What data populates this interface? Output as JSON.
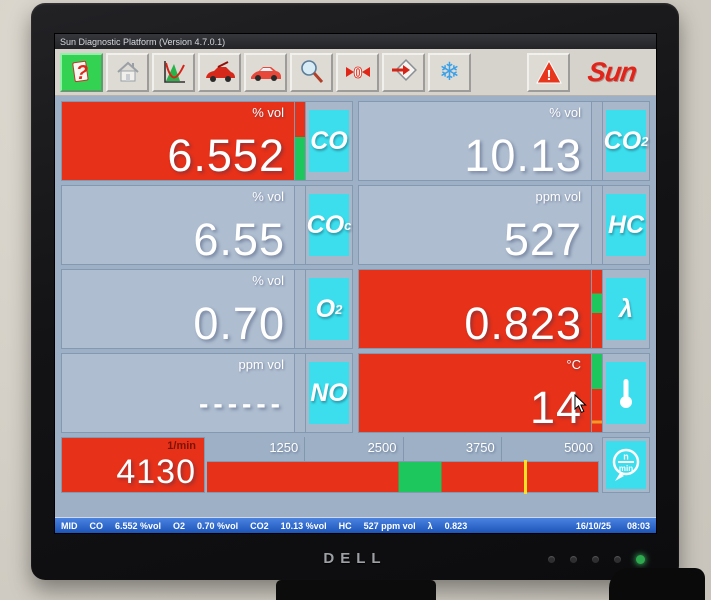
{
  "window": {
    "title": "Sun Diagnostic Platform (Version 4.7.0.1)"
  },
  "toolbar": {
    "help_glyph": "?",
    "zero_glyph": "0",
    "snowflake_glyph": "❄",
    "warning_glyph": "!",
    "logo": "Sun"
  },
  "panels": [
    {
      "gas": "CO",
      "sub": "",
      "unit": "% vol",
      "value": "6.552",
      "alarm": true,
      "bar": [
        {
          "c": "#e73119",
          "p": 45
        },
        {
          "c": "#1dc75d",
          "p": 55
        }
      ]
    },
    {
      "gas": "CO",
      "sub": "2",
      "unit": "% vol",
      "value": "10.13",
      "alarm": false,
      "bar": null
    },
    {
      "gas": "CO",
      "sub": "c",
      "unit": "% vol",
      "value": "6.55",
      "alarm": false,
      "bar": null
    },
    {
      "gas": "HC",
      "sub": "",
      "unit": "ppm vol",
      "value": "527",
      "alarm": false,
      "bar": null
    },
    {
      "gas": "O",
      "sub": "2",
      "unit": "% vol",
      "value": "0.70",
      "alarm": false,
      "bar": null
    },
    {
      "gas": "λ",
      "sub": "",
      "unit": "",
      "value": "0.823",
      "alarm": true,
      "bar": [
        {
          "c": "#e73119",
          "p": 30
        },
        {
          "c": "#1dc75d",
          "p": 25
        },
        {
          "c": "#e73119",
          "p": 45
        }
      ]
    },
    {
      "gas": "NO",
      "sub": "",
      "unit": "ppm vol",
      "value": "------",
      "alarm": false,
      "bar": null
    },
    {
      "gas": "",
      "sub": "",
      "unit": "°C",
      "value": "14",
      "alarm": true,
      "icon": "thermometer",
      "bar": [
        {
          "c": "#1dc75d",
          "p": 45
        },
        {
          "c": "#e73119",
          "p": 40
        },
        {
          "c": "#f09a28",
          "p": 4
        },
        {
          "c": "#e73119",
          "p": 11
        }
      ]
    }
  ],
  "tacho": {
    "unit": "1/min",
    "value": "4130",
    "ticks": [
      "1250",
      "2500",
      "3750",
      "5000"
    ],
    "alarm": true,
    "bar": [
      {
        "c": "#e73119",
        "p": 49
      },
      {
        "c": "#1dc75d",
        "p": 11
      },
      {
        "c": "#e73119",
        "p": 40
      }
    ],
    "marker_pct": 81,
    "icon_top": "n",
    "icon_bottom": "min"
  },
  "statusbar": {
    "items": [
      "MID",
      "CO",
      "6.552 %vol",
      "O2",
      "0.70 %vol",
      "CO2",
      "10.13 %vol",
      "HC",
      "527 ppm vol",
      "λ",
      "0.823"
    ],
    "date": "16/10/25",
    "time": "08:03"
  },
  "monitor": {
    "brand": "DELL"
  },
  "colors": {
    "alarm_red": "#e73119",
    "panel_gray": "#aebdd0",
    "label_cyan": "#3cdeed",
    "ok_green": "#1dc75d",
    "marker_yellow": "#ffe024",
    "status_blue": "#1c55b8"
  }
}
